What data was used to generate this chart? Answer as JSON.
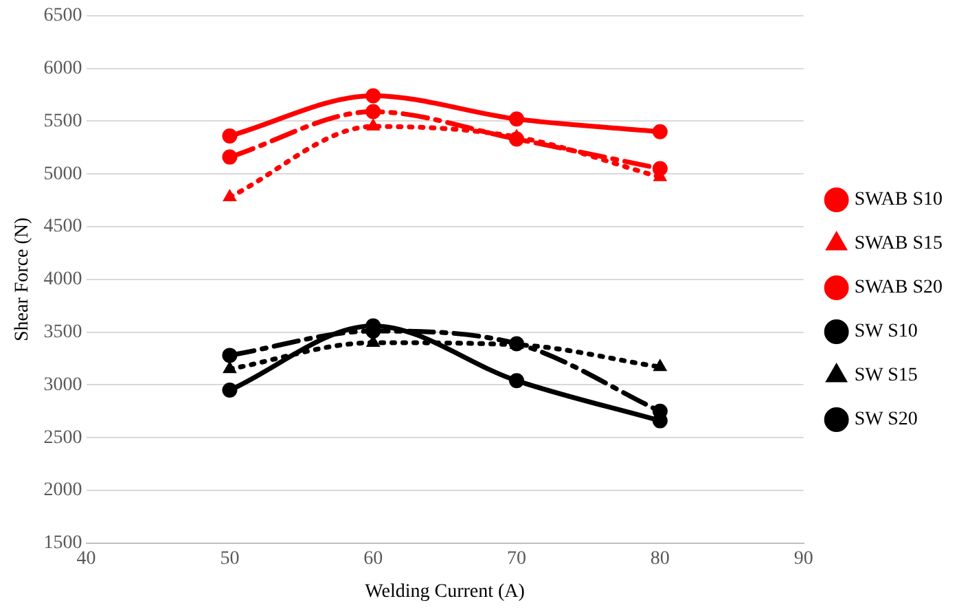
{
  "chart_data": {
    "type": "line",
    "xlabel": "Welding Current (A)",
    "ylabel": "Shear Force (N)",
    "x": [
      50,
      60,
      70,
      80
    ],
    "xlim": [
      40,
      90
    ],
    "xticks": [
      40,
      50,
      60,
      70,
      80,
      90
    ],
    "ylim": [
      1500,
      6500
    ],
    "yticks": [
      1500,
      2000,
      2500,
      3000,
      3500,
      4000,
      4500,
      5000,
      5500,
      6000,
      6500
    ],
    "grid": "y",
    "legend": "right",
    "series": [
      {
        "name": "SWAB S10",
        "color": "#ff0000",
        "line_style": "solid",
        "marker": "circle",
        "values": [
          5360,
          5740,
          5520,
          5400
        ]
      },
      {
        "name": "SWAB S15",
        "color": "#ff0000",
        "line_style": "dotted",
        "marker": "triangle",
        "values": [
          4780,
          5450,
          5350,
          4970
        ]
      },
      {
        "name": "SWAB S20",
        "color": "#ff0000",
        "line_style": "dashed",
        "marker": "circle",
        "values": [
          5160,
          5590,
          5330,
          5050
        ]
      },
      {
        "name": "SW S10",
        "color": "#000000",
        "line_style": "solid",
        "marker": "circle",
        "values": [
          2950,
          3560,
          3040,
          2660
        ]
      },
      {
        "name": "SW S15",
        "color": "#000000",
        "line_style": "dotted",
        "marker": "triangle",
        "values": [
          3150,
          3400,
          3380,
          3170
        ]
      },
      {
        "name": "SW S20",
        "color": "#000000",
        "line_style": "dashed",
        "marker": "circle",
        "values": [
          3280,
          3510,
          3390,
          2750
        ]
      }
    ]
  }
}
